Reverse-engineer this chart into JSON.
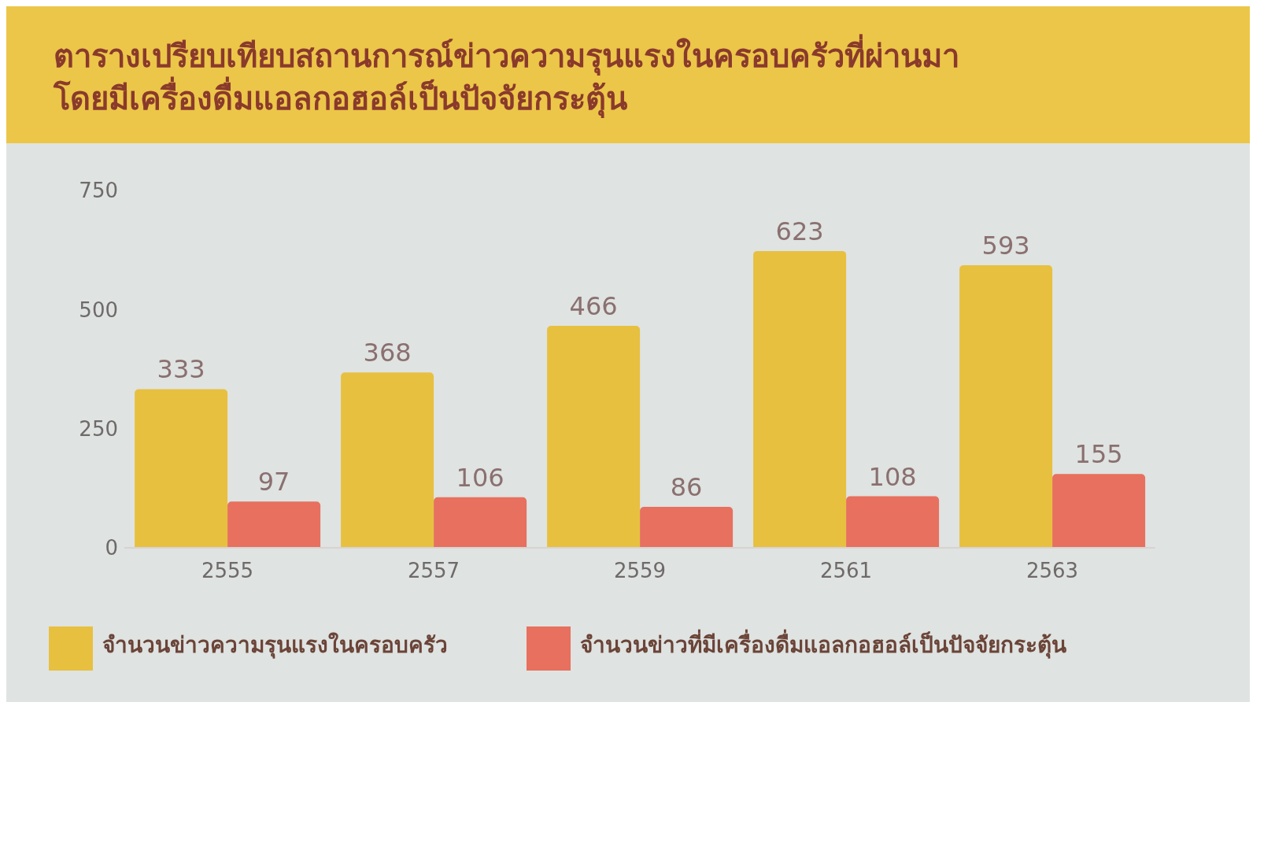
{
  "chart_data": {
    "type": "bar",
    "title": "ตารางเปรียบเทียบสถานการณ์ข่าวความรุนแรงในครอบครัวที่ผ่านมา\nโดยมีเครื่องดื่มแอลกอฮอล์เป็นปัจจัยกระตุ้น",
    "categories": [
      "2555",
      "2557",
      "2559",
      "2561",
      "2563"
    ],
    "series": [
      {
        "name": "จำนวนข่าวความรุนแรงในครอบครัว",
        "color": "#e8c040",
        "values": [
          333,
          368,
          466,
          623,
          593
        ]
      },
      {
        "name": "จำนวนข่าวที่มีเครื่องดื่มแอลกอฮอล์เป็นปัจจัยกระตุ้น",
        "color": "#e7705e",
        "values": [
          97,
          106,
          86,
          108,
          155
        ]
      }
    ],
    "ylim": [
      0,
      750
    ],
    "yticks": [
      0,
      250,
      500,
      750
    ],
    "data_labels": true,
    "legend": "bottom"
  }
}
